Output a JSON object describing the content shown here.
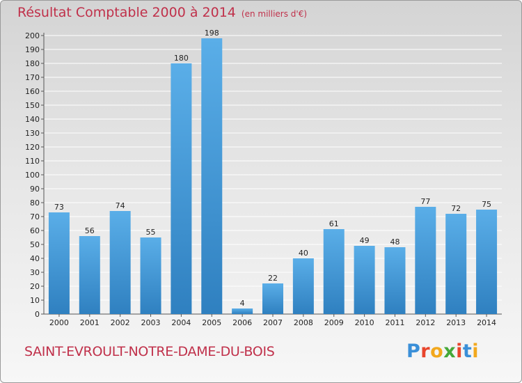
{
  "header": {
    "title": "Résultat Comptable 2000 à 2014",
    "unit": "(en milliers d'€)"
  },
  "footer": {
    "commune": "SAINT-EVROULT-NOTRE-DAME-DU-BOIS",
    "logo": "Proxiti"
  },
  "colors": {
    "title": "#c0304a",
    "bar_top": "#5aaee8",
    "bar_bottom": "#2f80c0",
    "grid": "#ffffff"
  },
  "chart_data": {
    "type": "bar",
    "title": "Résultat Comptable 2000 à 2014",
    "subtitle": "(en milliers d'€)",
    "xlabel": "",
    "ylabel": "",
    "categories": [
      "2000",
      "2001",
      "2002",
      "2003",
      "2004",
      "2005",
      "2006",
      "2007",
      "2008",
      "2009",
      "2010",
      "2011",
      "2012",
      "2013",
      "2014"
    ],
    "values": [
      73,
      56,
      74,
      55,
      180,
      198,
      4,
      22,
      40,
      61,
      49,
      48,
      77,
      72,
      75
    ],
    "ylim": [
      0,
      200
    ],
    "ytick_step": 10,
    "grid": true,
    "legend": "none"
  }
}
